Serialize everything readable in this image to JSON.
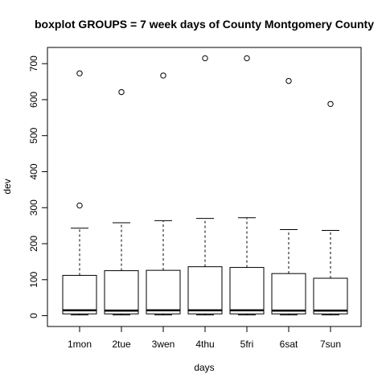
{
  "chart_data": {
    "type": "boxplot",
    "title": "boxplot GROUPS = 7 week days of County Montgomery County",
    "xlabel": "days",
    "ylabel": "dev",
    "ylim": [
      -30,
      745
    ],
    "yticks": [
      0,
      100,
      200,
      300,
      400,
      500,
      600,
      700
    ],
    "categories": [
      "1mon",
      "2tue",
      "3wen",
      "4thu",
      "5fri",
      "6sat",
      "7sun"
    ],
    "boxes": [
      {
        "name": "1mon",
        "min": 2,
        "q1": 5,
        "median": 15,
        "q3": 112,
        "max": 243,
        "outliers": [
          306,
          673
        ]
      },
      {
        "name": "2tue",
        "min": 2,
        "q1": 5,
        "median": 14,
        "q3": 125,
        "max": 258,
        "outliers": [
          621
        ]
      },
      {
        "name": "3wen",
        "min": 2,
        "q1": 5,
        "median": 15,
        "q3": 126,
        "max": 264,
        "outliers": [
          667
        ]
      },
      {
        "name": "4thu",
        "min": 2,
        "q1": 5,
        "median": 15,
        "q3": 136,
        "max": 270,
        "outliers": [
          715
        ]
      },
      {
        "name": "5fri",
        "min": 2,
        "q1": 5,
        "median": 15,
        "q3": 134,
        "max": 272,
        "outliers": [
          715
        ]
      },
      {
        "name": "6sat",
        "min": 2,
        "q1": 5,
        "median": 14,
        "q3": 117,
        "max": 239,
        "outliers": [
          652
        ]
      },
      {
        "name": "7sun",
        "min": 2,
        "q1": 5,
        "median": 14,
        "q3": 104,
        "max": 237,
        "outliers": [
          588
        ]
      }
    ]
  }
}
